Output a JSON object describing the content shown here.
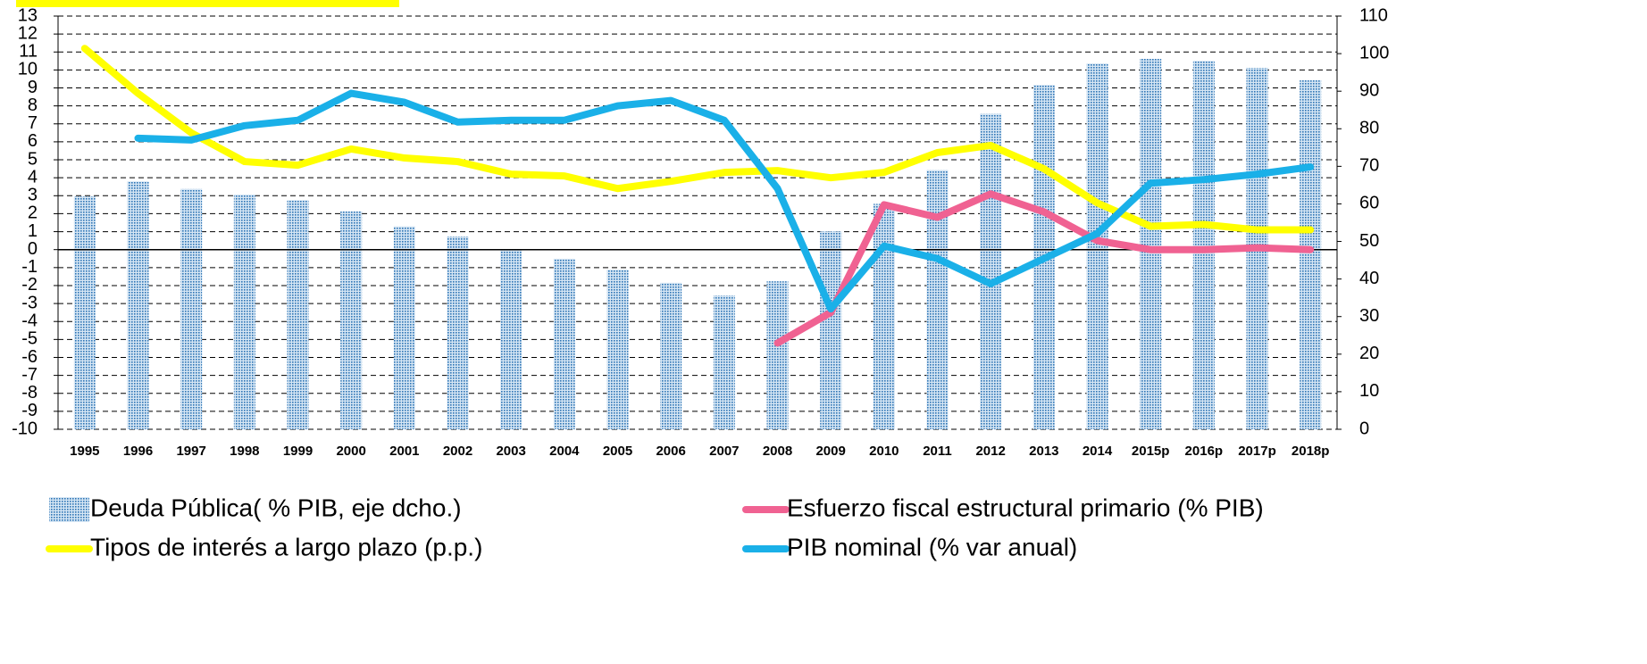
{
  "chart_data": {
    "type": "combo",
    "categories": [
      "1995",
      "1996",
      "1997",
      "1998",
      "1999",
      "2000",
      "2001",
      "2002",
      "2003",
      "2004",
      "2005",
      "2006",
      "2007",
      "2008",
      "2009",
      "2010",
      "2011",
      "2012",
      "2013",
      "2014",
      "2015p",
      "2016p",
      "2017p",
      "2018p"
    ],
    "series": [
      {
        "name": "Deuda Pública( % PIB, eje dcho.)",
        "type": "bar",
        "axis": "y2",
        "color": "#5b9bd5",
        "values": [
          62,
          66,
          64,
          62.5,
          61,
          58,
          54,
          51.3,
          47.7,
          45.4,
          42.5,
          39,
          35.6,
          39.4,
          52.7,
          60,
          69,
          84,
          91.7,
          97.4,
          98.6,
          98.1,
          96.2,
          92.9
        ]
      },
      {
        "name": "Esfuerzo fiscal estructural primario (% PIB)",
        "type": "line",
        "color": "#f06292",
        "values": [
          null,
          null,
          null,
          null,
          null,
          null,
          null,
          null,
          null,
          null,
          null,
          null,
          null,
          -5.2,
          -3.5,
          2.5,
          1.8,
          3.1,
          2.1,
          0.5,
          0.0,
          0.0,
          0.1,
          0.0
        ]
      },
      {
        "name": "Tipos de interés a largo plazo (p.p.)",
        "type": "line",
        "color": "#ffff00",
        "values": [
          11.2,
          8.7,
          6.5,
          4.9,
          4.7,
          5.6,
          5.1,
          4.9,
          4.2,
          4.1,
          3.4,
          3.8,
          4.3,
          4.4,
          4.0,
          4.3,
          5.4,
          5.8,
          4.5,
          2.6,
          1.3,
          1.4,
          1.1,
          1.1
        ]
      },
      {
        "name": "PIB nominal (% var anual)",
        "type": "line",
        "color": "#1ab0e8",
        "values": [
          null,
          6.2,
          6.1,
          6.9,
          7.2,
          8.7,
          8.2,
          7.1,
          7.2,
          7.2,
          8.0,
          8.3,
          7.2,
          3.4,
          -3.3,
          0.2,
          -0.5,
          -1.9,
          -0.5,
          0.9,
          3.7,
          3.9,
          4.2,
          4.6
        ]
      }
    ],
    "ylim": [
      -10,
      13
    ],
    "yticks": [
      -10,
      -9,
      -8,
      -7,
      -6,
      -5,
      -4,
      -3,
      -2,
      -1,
      0,
      1,
      2,
      3,
      4,
      5,
      6,
      7,
      8,
      9,
      10,
      11,
      12,
      13
    ],
    "y2lim": [
      0,
      110
    ],
    "y2ticks": [
      0,
      10,
      20,
      30,
      40,
      50,
      60,
      70,
      80,
      90,
      100,
      110
    ],
    "grid": true,
    "legend": "bottom"
  }
}
